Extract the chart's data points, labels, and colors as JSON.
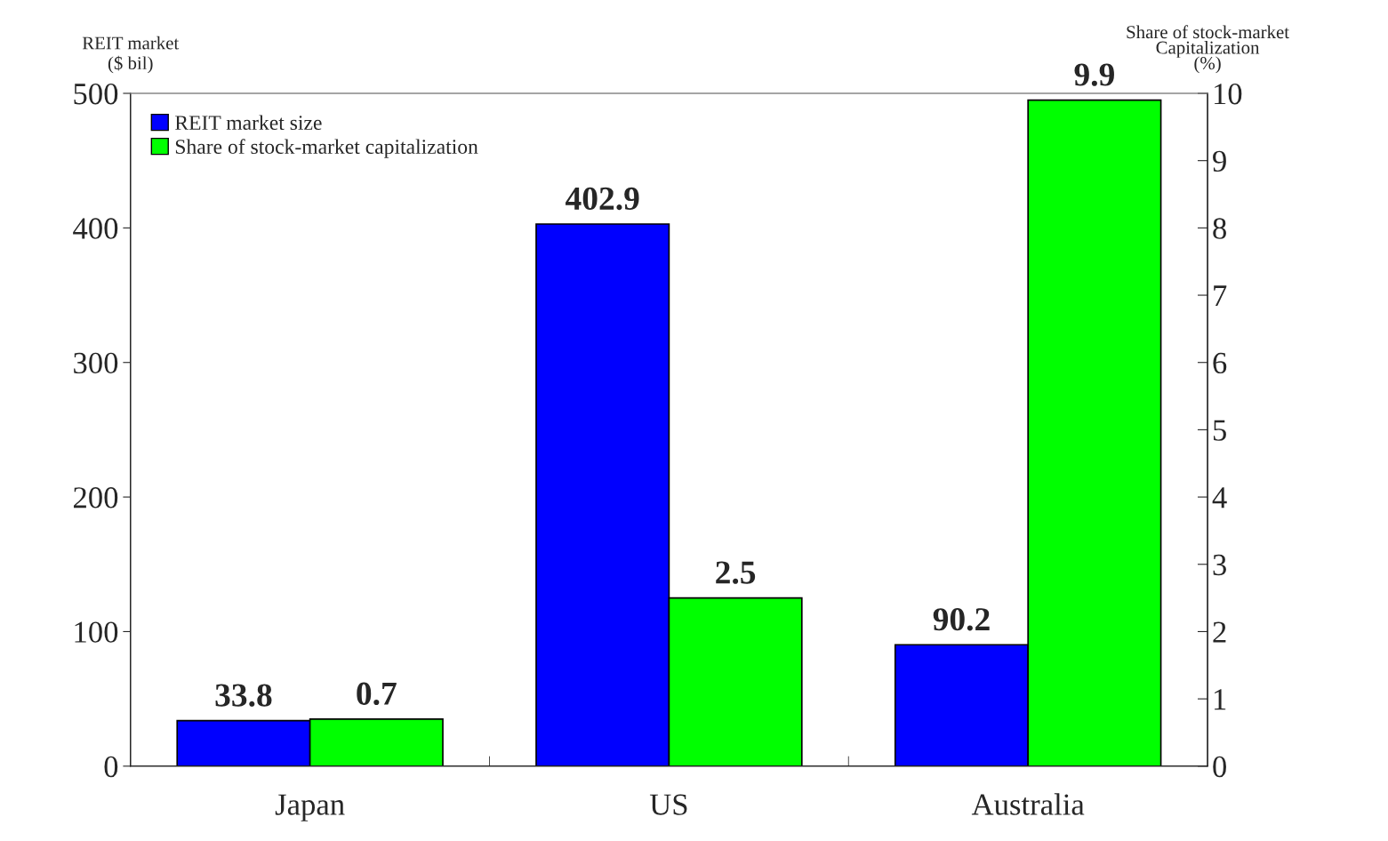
{
  "chart_data": {
    "type": "bar",
    "categories": [
      "Japan",
      "US",
      "Australia"
    ],
    "series": [
      {
        "name": "REIT market size",
        "color": "#0000ff",
        "values": [
          33.8,
          402.9,
          90.2
        ]
      },
      {
        "name": "Share of stock-market capitalization",
        "color": "#00ff00",
        "values": [
          0.7,
          2.5,
          9.9
        ],
        "axis": "y2"
      }
    ],
    "ylabel": "REIT market\n($ bil)",
    "y2label": "Share of stock-market\nCapitalization\n(%)",
    "ylim": [
      0,
      500
    ],
    "yticks": [
      0,
      100,
      200,
      300,
      400,
      500
    ],
    "y2lim": [
      0,
      10
    ],
    "y2ticks": [
      0,
      1,
      2,
      3,
      4,
      5,
      6,
      7,
      8,
      9,
      10
    ],
    "data_labels": true,
    "legend": "top left",
    "grid": false
  }
}
